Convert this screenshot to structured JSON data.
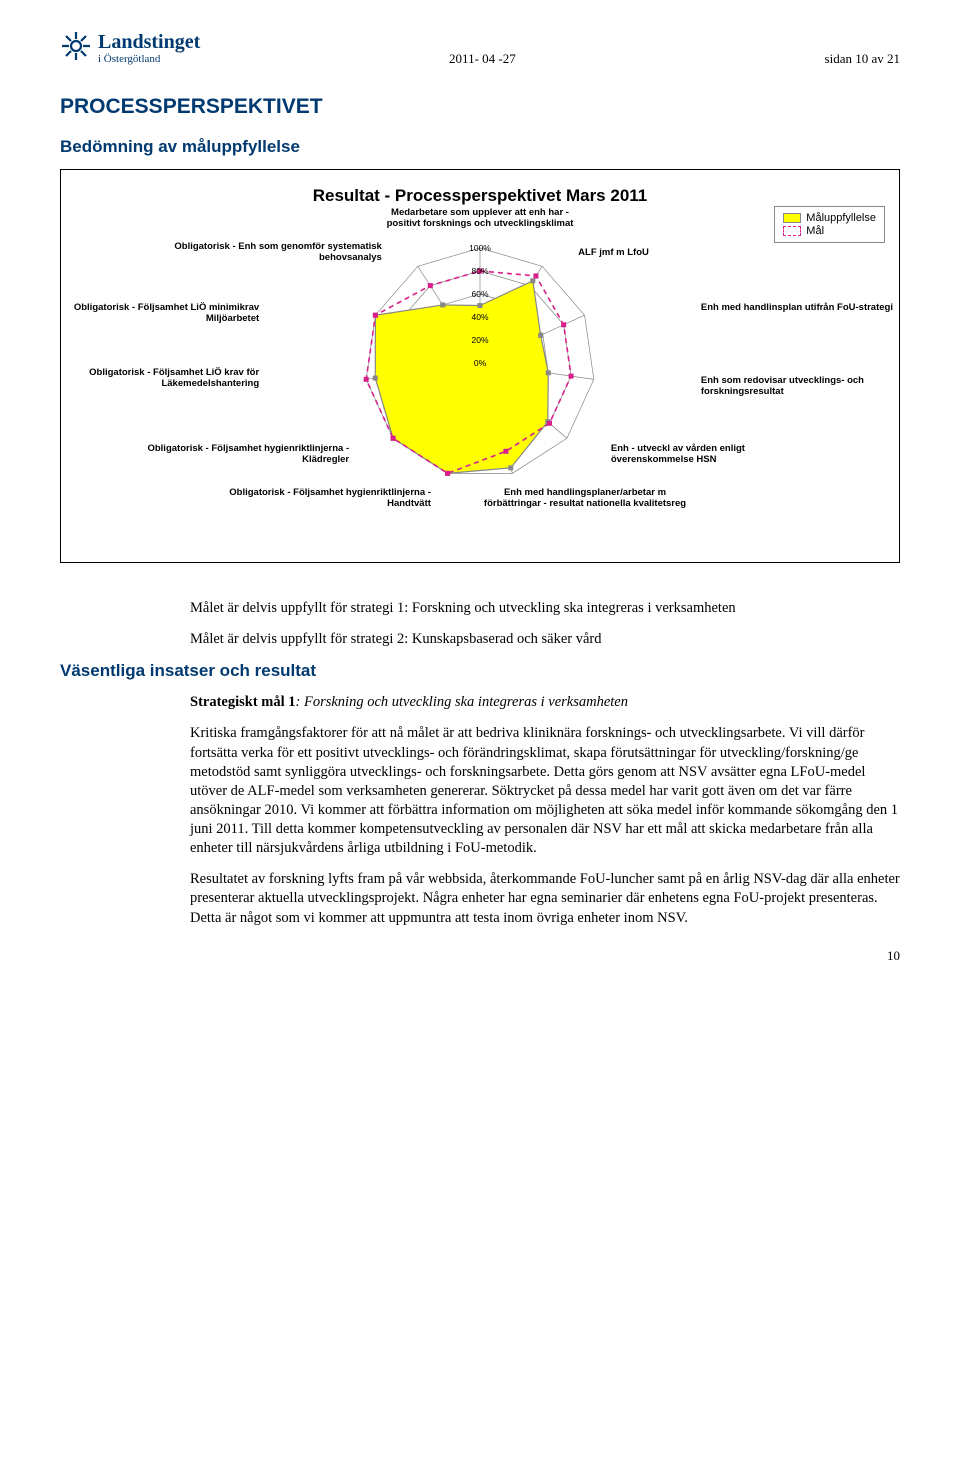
{
  "header": {
    "logo_main": "Landstinget",
    "logo_sub": "i Östergötland",
    "date": "2011- 04 -27",
    "page_info": "sidan 10 av 21"
  },
  "section_title": "PROCESSPERSPEKTIVET",
  "subsection_title": "Bedömning av måluppfyllelse",
  "chart": {
    "title": "Resultat - Processperspektivet Mars 2011",
    "legend_solid": "Måluppfyllelse",
    "legend_dash": "Mål",
    "ring_labels": [
      "100%",
      "80%",
      "60%",
      "40%",
      "20%",
      "0%"
    ],
    "ring_radii": [
      115,
      92,
      69,
      46,
      23,
      0
    ],
    "axes": [
      {
        "label": "Medarbetare som upplever att enh har - positivt forsknings och utvecklingsklimat",
        "pos": "top-center"
      },
      {
        "label": "ALF jmf m LfoU",
        "pos": "top-right"
      },
      {
        "label": "Enh med handlinsplan utifrån FoU-strategi",
        "pos": "right-upper"
      },
      {
        "label": "Enh som redovisar utvecklings- och forskningsresultat",
        "pos": "right-lower"
      },
      {
        "label": "Enh - utveckl av vården enligt överenskommelse HSN",
        "pos": "bot-right"
      },
      {
        "label": "Enh med handlingsplaner/arbetar m förbättringar - resultat nationella kvalitetsreg",
        "pos": "bot-center-right"
      },
      {
        "label": "Obligatorisk - Följsamhet hygienriktlinjerna - Handtvätt",
        "pos": "bot-center-left"
      },
      {
        "label": "Obligatorisk - Följsamhet hygienriktlinjerna - Klädregler",
        "pos": "bot-left"
      },
      {
        "label": "Obligatorisk - Följsamhet LiÖ krav för Läkemedelshantering",
        "pos": "left-lower"
      },
      {
        "label": "Obligatorisk - Följsamhet LiÖ minimikrav Miljöarbetet",
        "pos": "left-upper"
      },
      {
        "label": "Obligatorisk - Enh som genomför systematisk behovsanalys",
        "pos": "top-left"
      }
    ],
    "colors": {
      "fill": "#ffff00",
      "data_line": "#888888",
      "target_line": "#d91e8c",
      "grid": "#888888",
      "marker": "#888888"
    },
    "angles_deg": [
      0,
      32.73,
      65.45,
      98.18,
      130.91,
      163.64,
      196.36,
      229.09,
      261.82,
      294.55,
      327.27
    ],
    "target_values": [
      80,
      90,
      80,
      80,
      80,
      80,
      100,
      100,
      100,
      100,
      80
    ],
    "data_values": [
      50,
      85,
      58,
      60,
      78,
      95,
      100,
      100,
      92,
      100,
      60
    ]
  },
  "body": {
    "p1": "Målet är delvis uppfyllt för strategi 1: Forskning och utveckling ska integreras i verksamheten",
    "p2": "Målet är delvis uppfyllt för strategi 2: Kunskapsbaserad och säker vård",
    "insatser_title": "Väsentliga insatser och resultat",
    "s1_label": "Strategiskt mål 1",
    "s1_em": ": Forskning och utveckling ska integreras i verksamheten",
    "p3": "Kritiska framgångsfaktorer för att nå målet är att bedriva kliniknära forsknings- och utvecklingsarbete. Vi vill därför fortsätta verka för ett positivt utvecklings- och förändringsklimat, skapa förutsättningar för utveckling/forskning/ge metodstöd samt synliggöra utvecklings- och forskningsarbete. Detta görs genom att NSV avsätter egna LFoU-medel utöver de ALF-medel som verksamheten genererar. Söktrycket på dessa medel har varit gott även om det var färre ansökningar 2010. Vi kommer att förbättra information om möjligheten att söka medel inför kommande sökomgång den 1 juni 2011. Till detta kommer kompetensutveckling av personalen där NSV har ett mål att skicka medarbetare från alla enheter till närsjukvårdens årliga utbildning i FoU-metodik.",
    "p4": "Resultatet av forskning lyfts fram på vår webbsida, återkommande FoU-luncher samt på en årlig NSV-dag där alla enheter presenterar aktuella utvecklingsprojekt. Några enheter har egna seminarier där enhetens egna FoU-projekt presenteras. Detta är något som vi kommer att uppmuntra att testa inom övriga enheter inom NSV."
  },
  "page_number": "10"
}
